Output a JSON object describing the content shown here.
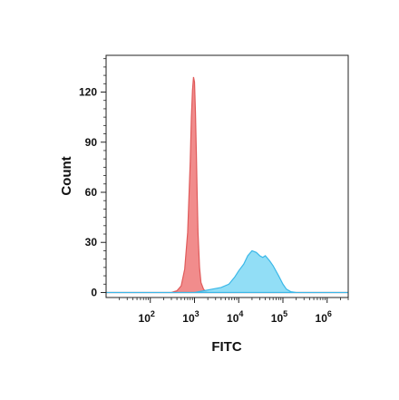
{
  "chart_data": {
    "type": "area",
    "xlabel": "FITC",
    "ylabel": "Count",
    "x_scale": "log10",
    "xlim": [
      10,
      3000000
    ],
    "ylim": [
      -3,
      142
    ],
    "y_ticks": [
      0,
      30,
      60,
      90,
      120
    ],
    "x_ticks": [
      {
        "value": 100,
        "base": "10",
        "exp": "2"
      },
      {
        "value": 1000,
        "base": "10",
        "exp": "3"
      },
      {
        "value": 10000,
        "base": "10",
        "exp": "4"
      },
      {
        "value": 100000,
        "base": "10",
        "exp": "5"
      },
      {
        "value": 1000000,
        "base": "10",
        "exp": "6"
      }
    ],
    "grid": false,
    "legend": "none",
    "series": [
      {
        "color": "#f08080",
        "stroke": "#e05a5a",
        "x": [
          10,
          300,
          400,
          500,
          600,
          700,
          800,
          850,
          900,
          950,
          1000,
          1050,
          1100,
          1150,
          1200,
          1300,
          1400,
          1600,
          1800,
          2000,
          3000000
        ],
        "y": [
          0,
          0,
          1,
          4,
          14,
          36,
          78,
          105,
          121,
          129,
          126,
          108,
          84,
          58,
          36,
          15,
          6,
          2,
          0.5,
          0,
          0
        ]
      },
      {
        "color": "#7fd8f5",
        "stroke": "#3bb8e8",
        "x": [
          10,
          1000,
          1600,
          2500,
          4000,
          6000,
          8000,
          10000,
          13000,
          16000,
          20000,
          25000,
          30000,
          35000,
          40000,
          50000,
          60000,
          80000,
          100000,
          120000,
          150000,
          200000,
          3000000
        ],
        "y": [
          0,
          0,
          1,
          2,
          3,
          5,
          9,
          13,
          17,
          22,
          25,
          24,
          22,
          21,
          22,
          19,
          16,
          10,
          5,
          2,
          0.5,
          0,
          0
        ]
      }
    ]
  }
}
